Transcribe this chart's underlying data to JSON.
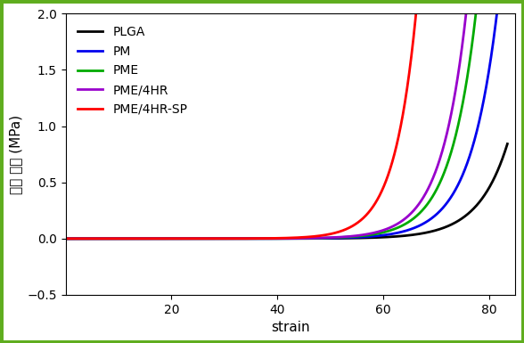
{
  "title": "",
  "xlabel": "strain",
  "ylabel": "압축 강도 (MPa)",
  "ylim": [
    -0.5,
    2.0
  ],
  "xlim": [
    0,
    85
  ],
  "yticks": [
    -0.5,
    0.0,
    0.5,
    1.0,
    1.5,
    2.0
  ],
  "xticks": [
    20,
    40,
    60,
    80
  ],
  "series": [
    {
      "label": "PLGA",
      "color": "#000000",
      "a": 2.5e-07,
      "b": 0.18,
      "end_x": 83.5
    },
    {
      "label": "PM",
      "color": "#0000EE",
      "a": 2.5e-07,
      "b": 0.195,
      "end_x": 81.5
    },
    {
      "label": "PME",
      "color": "#00AA00",
      "a": 2.5e-07,
      "b": 0.205,
      "end_x": 81.0
    },
    {
      "label": "PME/4HR",
      "color": "#9900CC",
      "a": 2.5e-07,
      "b": 0.21,
      "end_x": 80.5
    },
    {
      "label": "PME/4HR-SP",
      "color": "#FF0000",
      "a": 2.5e-07,
      "b": 0.24,
      "end_x": 80.0
    }
  ],
  "background_color": "#FFFFFF",
  "border_color": "#5FAD1E",
  "border_linewidth": 5,
  "linewidth": 2.0,
  "legend_fontsize": 10,
  "axis_fontsize": 11,
  "tick_fontsize": 10
}
